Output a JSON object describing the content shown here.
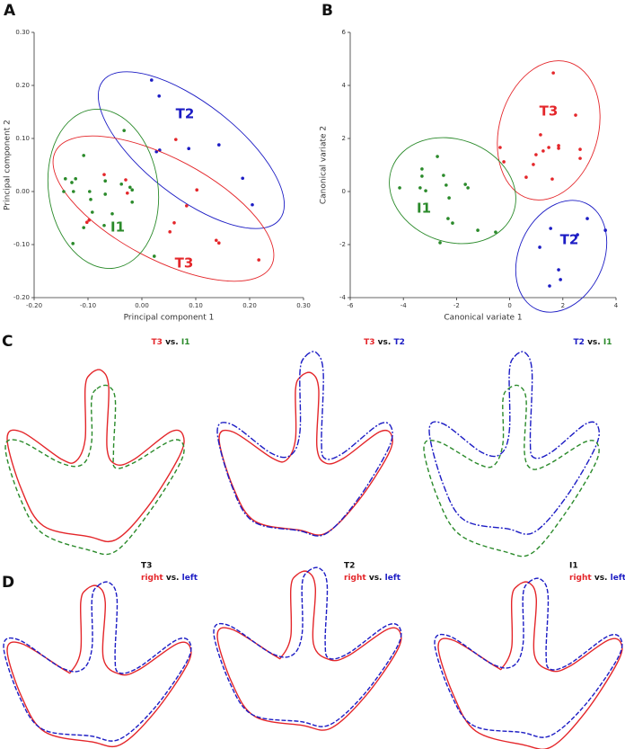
{
  "chart_data": [
    {
      "type": "scatter",
      "panel": "A",
      "x_label": "Principal component 1",
      "y_label": "Principal component 2",
      "xlim": [
        -0.2,
        0.3
      ],
      "ylim": [
        -0.2,
        0.3
      ],
      "xticks": [
        {
          "value": -0.2,
          "label": "-0.20"
        },
        {
          "value": -0.1,
          "label": "-0.10"
        },
        {
          "value": 0,
          "label": "0.00"
        },
        {
          "value": 0.1,
          "label": "0.10"
        },
        {
          "value": 0.2,
          "label": "0.20"
        },
        {
          "value": 0.3,
          "label": "0.30"
        }
      ],
      "yticks": [
        {
          "value": -0.2,
          "label": "-0.20"
        },
        {
          "value": -0.1,
          "label": "-0.10"
        },
        {
          "value": 0,
          "label": "0.00"
        },
        {
          "value": 0.1,
          "label": "0.10"
        },
        {
          "value": 0.2,
          "label": "0.20"
        },
        {
          "value": 0.3,
          "label": "0.30"
        }
      ],
      "series": [
        {
          "name": "T2",
          "color": "#1c1cc4",
          "x": [
            0.018,
            0.032,
            0.027,
            0.033,
            0.087,
            0.143,
            0.187,
            0.205
          ],
          "values": [
            0.21,
            0.18,
            0.075,
            0.078,
            0.081,
            0.088,
            0.025,
            -0.025
          ]
        },
        {
          "name": "T3",
          "color": "#e4262a",
          "x": [
            -0.07,
            -0.03,
            -0.098,
            -0.102,
            -0.027,
            0.063,
            0.083,
            0.102,
            0.06,
            0.052,
            0.138,
            0.143,
            0.217
          ],
          "values": [
            0.032,
            0.022,
            -0.054,
            -0.058,
            -0.003,
            0.098,
            -0.027,
            0.003,
            -0.059,
            -0.076,
            -0.092,
            -0.097,
            -0.129
          ]
        },
        {
          "name": "I1",
          "color": "#2a8a2a",
          "x": [
            -0.033,
            -0.108,
            -0.142,
            -0.123,
            -0.13,
            -0.145,
            -0.127,
            -0.097,
            -0.092,
            -0.095,
            -0.068,
            -0.068,
            -0.038,
            -0.022,
            -0.018,
            -0.018,
            -0.055,
            -0.07,
            -0.108,
            -0.128,
            0.023
          ],
          "values": [
            0.115,
            0.068,
            0.024,
            0.024,
            0.017,
            0,
            0,
            0,
            -0.039,
            -0.015,
            -0.005,
            0.02,
            0.014,
            0.008,
            0.003,
            -0.02,
            -0.042,
            -0.064,
            -0.068,
            -0.098,
            -0.122
          ]
        }
      ]
    },
    {
      "type": "scatter",
      "panel": "B",
      "x_label": "Canonical variate 1",
      "y_label": "Canonical variate 2",
      "xlim": [
        -6,
        4
      ],
      "ylim": [
        -4,
        6
      ],
      "xticks": [
        -6,
        -4,
        -2,
        0,
        2,
        4
      ],
      "yticks": [
        -4,
        -2,
        0,
        2,
        4,
        6
      ],
      "series": [
        {
          "name": "T3",
          "color": "#e4262a",
          "x": [
            1.64,
            -0.36,
            -0.22,
            0.62,
            0.89,
            0.99,
            1.16,
            1.26,
            1.47,
            1.84,
            1.84,
            2.48,
            2.65,
            2.65,
            1.6
          ],
          "values": [
            4.47,
            1.66,
            1.12,
            0.54,
            1.02,
            1.39,
            2.14,
            1.53,
            1.66,
            1.63,
            1.73,
            2.88,
            1.59,
            1.25,
            0.47
          ]
        },
        {
          "name": "I1",
          "color": "#2a8a2a",
          "x": [
            -4.14,
            -3.3,
            -3.3,
            -3.37,
            -3.16,
            -2.72,
            -2.49,
            -2.39,
            -2.28,
            -2.32,
            -2.15,
            -1.67,
            -1.57,
            -1.2,
            -2.62,
            -0.53
          ],
          "values": [
            0.14,
            0.85,
            0.58,
            0.14,
            0.03,
            1.32,
            0.61,
            0.24,
            -0.24,
            -1.02,
            -1.19,
            0.27,
            0.14,
            -1.46,
            -1.93,
            -1.53
          ]
        },
        {
          "name": "T2",
          "color": "#1c1cc4",
          "x": [
            2.92,
            2.55,
            1.54,
            1.13,
            1.84,
            1.91,
            1.5,
            3.6
          ],
          "values": [
            -1.02,
            -1.63,
            -1.39,
            -2.1,
            -2.95,
            -3.32,
            -3.56,
            -1.46
          ]
        }
      ]
    }
  ],
  "panel_c": {
    "label": "C",
    "comparisons": [
      [
        {
          "text": "T3",
          "color": "#e4262a"
        },
        {
          "text": "vs.",
          "color": "#111111"
        },
        {
          "text": "I1",
          "color": "#2a8a2a"
        }
      ],
      [
        {
          "text": "T3",
          "color": "#e4262a"
        },
        {
          "text": "vs.",
          "color": "#111111"
        },
        {
          "text": "T2",
          "color": "#1c1cc4"
        }
      ],
      [
        {
          "text": "T2",
          "color": "#1c1cc4"
        },
        {
          "text": "vs.",
          "color": "#111111"
        },
        {
          "text": "I1",
          "color": "#2a8a2a"
        }
      ]
    ]
  },
  "panel_d": {
    "label": "D",
    "groups": [
      {
        "name": "T3",
        "legend": [
          {
            "text": "right",
            "color": "#e4262a"
          },
          {
            "text": "vs.",
            "color": "#111111"
          },
          {
            "text": "left",
            "color": "#1c1cc4"
          }
        ]
      },
      {
        "name": "T2",
        "legend": [
          {
            "text": "right",
            "color": "#e4262a"
          },
          {
            "text": "vs.",
            "color": "#111111"
          },
          {
            "text": "left",
            "color": "#1c1cc4"
          }
        ]
      },
      {
        "name": "I1",
        "legend": [
          {
            "text": "right",
            "color": "#e4262a"
          },
          {
            "text": "vs.",
            "color": "#111111"
          },
          {
            "text": "left",
            "color": "#1c1cc4"
          }
        ]
      }
    ]
  }
}
